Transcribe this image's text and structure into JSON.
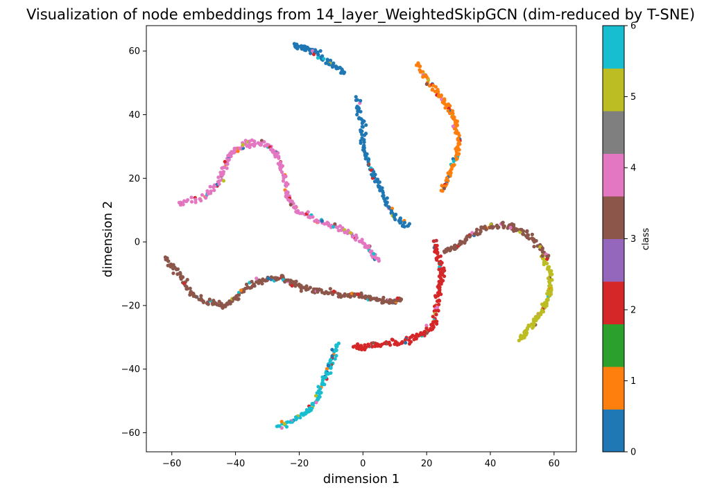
{
  "chart_data": {
    "type": "scatter",
    "title": "Visualization of node embeddings from 14_layer_WeightedSkipGCN (dim-reduced by T-SNE)",
    "xlabel": "dimension 1",
    "ylabel": "dimension 2",
    "xlim": [
      -68,
      67
    ],
    "ylim": [
      -66,
      68
    ],
    "xticks": [
      -60,
      -40,
      -20,
      0,
      20,
      40,
      60
    ],
    "yticks": [
      -60,
      -40,
      -20,
      0,
      20,
      40,
      60
    ],
    "grid": false,
    "colorbar": {
      "label": "class",
      "ticks": [
        0,
        1,
        2,
        3,
        4,
        5,
        6
      ],
      "colors": [
        "#1f77b4",
        "#ff7f0e",
        "#2ca02c",
        "#d62728",
        "#9467bd",
        "#8c564b",
        "#e377c2",
        "#7f7f7f",
        "#bcbd22",
        "#17becf"
      ]
    },
    "clusters": [
      {
        "name": "top-arc",
        "class": 0,
        "points": [
          [
            -22,
            62
          ],
          [
            -18,
            61
          ],
          [
            -14,
            59
          ],
          [
            -10,
            56
          ],
          [
            -6,
            53
          ]
        ]
      },
      {
        "name": "center-up",
        "class": 0,
        "points": [
          [
            -2,
            45
          ],
          [
            0,
            38
          ],
          [
            0,
            30
          ],
          [
            2,
            24
          ],
          [
            5,
            18
          ],
          [
            7,
            13
          ],
          [
            10,
            8
          ],
          [
            14,
            5
          ]
        ]
      },
      {
        "name": "orange-arm",
        "class": 1,
        "points": [
          [
            17,
            56
          ],
          [
            20,
            51
          ],
          [
            24,
            46
          ],
          [
            27,
            42
          ],
          [
            29,
            37
          ],
          [
            30,
            31
          ],
          [
            29,
            26
          ],
          [
            27,
            21
          ],
          [
            25,
            16
          ]
        ]
      },
      {
        "name": "pink-arc",
        "class": 4,
        "points": [
          [
            -58,
            12
          ],
          [
            -50,
            14
          ],
          [
            -45,
            19
          ],
          [
            -43,
            25
          ],
          [
            -40,
            29
          ],
          [
            -36,
            31
          ],
          [
            -31,
            31
          ],
          [
            -27,
            28
          ],
          [
            -25,
            22
          ],
          [
            -24,
            15
          ],
          [
            -21,
            10
          ],
          [
            -15,
            7
          ],
          [
            -9,
            5
          ],
          [
            -3,
            2
          ],
          [
            2,
            -2
          ],
          [
            5,
            -6
          ]
        ]
      },
      {
        "name": "brown-band",
        "class": 3,
        "points": [
          [
            -62,
            -5
          ],
          [
            -58,
            -10
          ],
          [
            -54,
            -16
          ],
          [
            -49,
            -19
          ],
          [
            -44,
            -20
          ],
          [
            -40,
            -18
          ],
          [
            -36,
            -14
          ],
          [
            -31,
            -12
          ],
          [
            -26,
            -11
          ],
          [
            -22,
            -13
          ],
          [
            -17,
            -15
          ],
          [
            -11,
            -16
          ],
          [
            -5,
            -17
          ],
          [
            0,
            -17
          ],
          [
            5,
            -18
          ],
          [
            9,
            -19
          ],
          [
            12,
            -18
          ]
        ]
      },
      {
        "name": "red-core",
        "class": 2,
        "points": [
          [
            22,
            0
          ],
          [
            24,
            -5
          ],
          [
            25,
            -10
          ],
          [
            24,
            -15
          ],
          [
            23,
            -21
          ],
          [
            22,
            -26
          ],
          [
            19,
            -29
          ],
          [
            14,
            -31
          ],
          [
            7,
            -32
          ],
          [
            1,
            -33
          ],
          [
            -3,
            -33
          ]
        ]
      },
      {
        "name": "brown-right-arc",
        "class": 3,
        "points": [
          [
            26,
            -3
          ],
          [
            30,
            -1
          ],
          [
            35,
            3
          ],
          [
            40,
            5
          ],
          [
            46,
            5
          ],
          [
            51,
            3
          ],
          [
            55,
            -1
          ],
          [
            58,
            -5
          ]
        ]
      },
      {
        "name": "olive-arm",
        "class": 5,
        "points": [
          [
            56,
            -4
          ],
          [
            59,
            -9
          ],
          [
            59,
            -14
          ],
          [
            58,
            -19
          ],
          [
            55,
            -23
          ],
          [
            52,
            -27
          ],
          [
            49,
            -31
          ]
        ]
      },
      {
        "name": "cyan-arm",
        "class": 6,
        "points": [
          [
            -8,
            -32
          ],
          [
            -10,
            -38
          ],
          [
            -12,
            -43
          ],
          [
            -14,
            -48
          ],
          [
            -17,
            -53
          ],
          [
            -21,
            -56
          ],
          [
            -27,
            -58
          ]
        ]
      }
    ]
  }
}
